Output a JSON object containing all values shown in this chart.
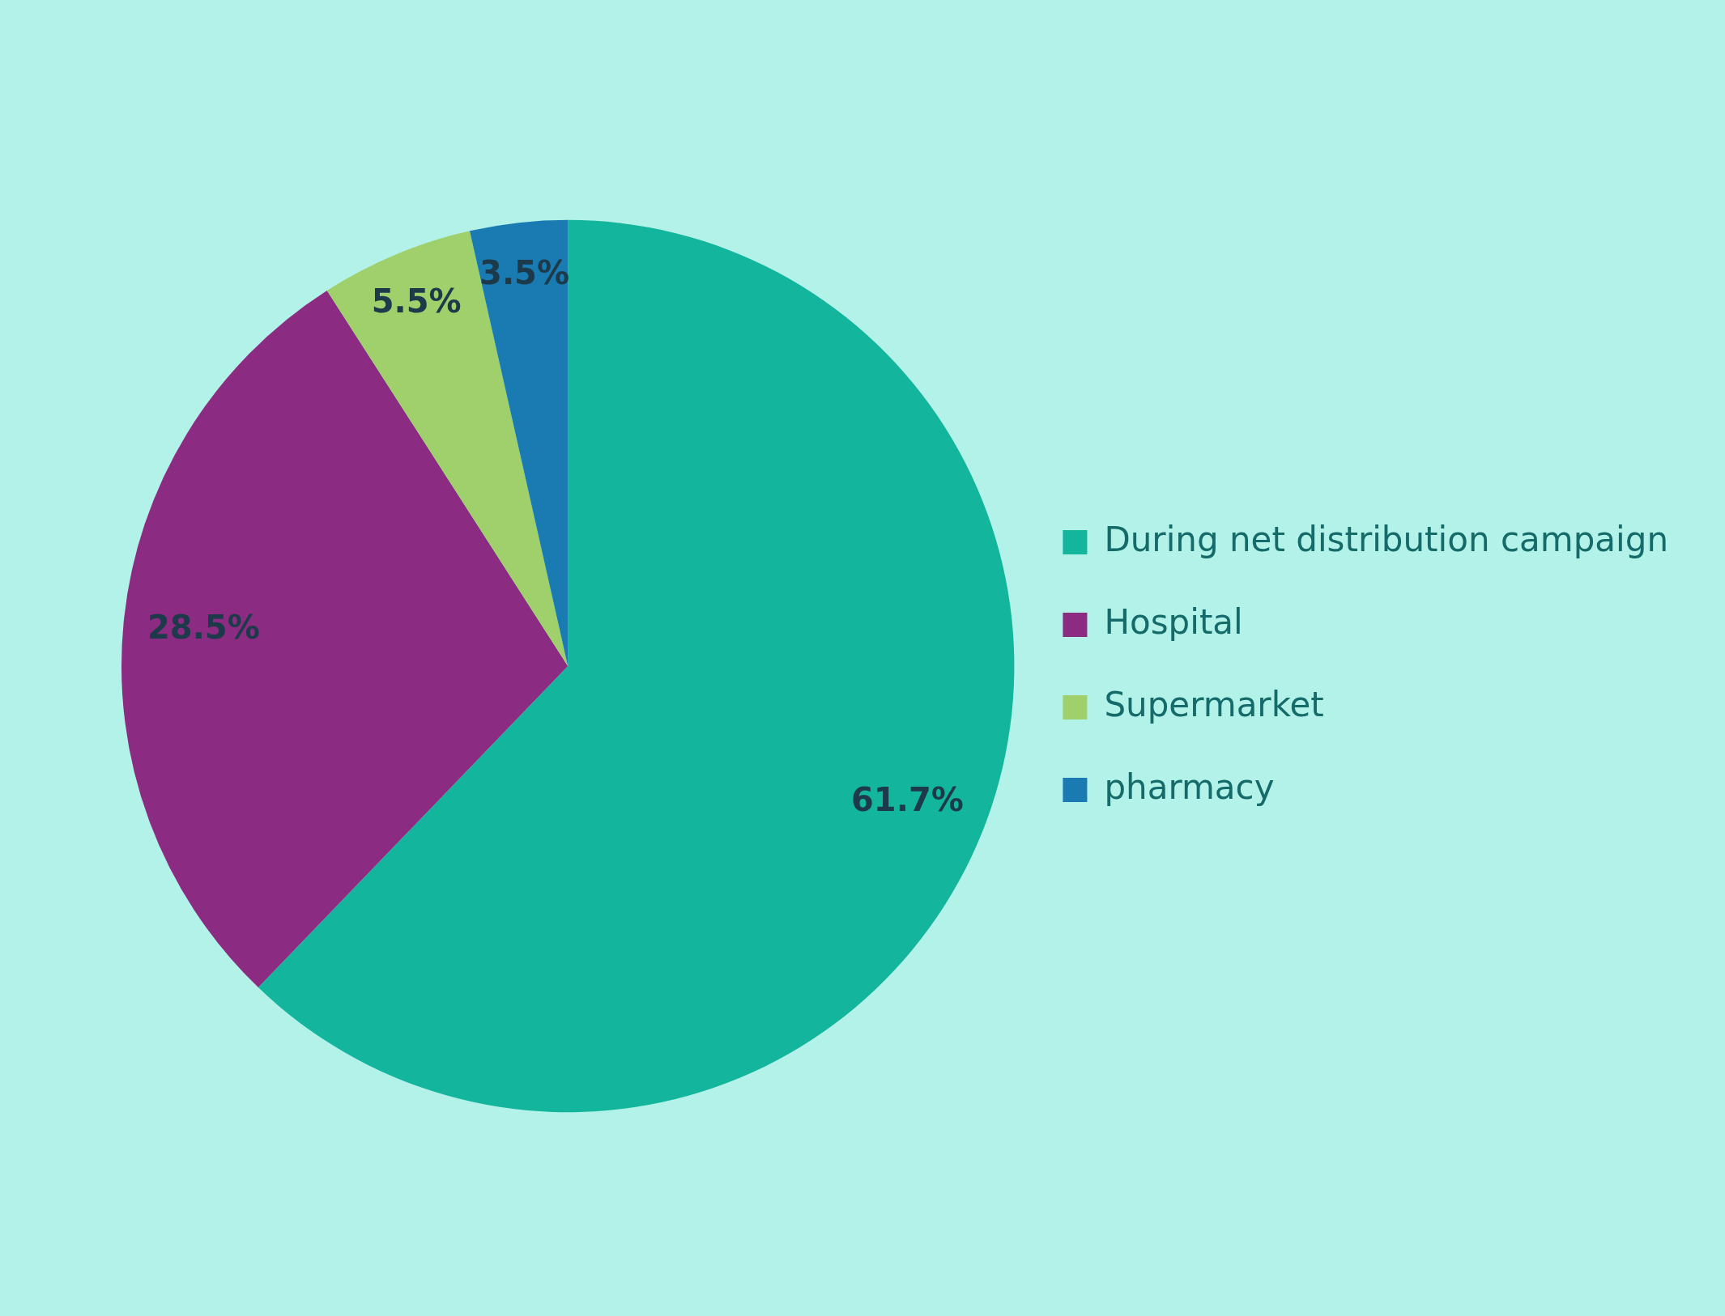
{
  "chart_data": {
    "type": "pie",
    "categories": [
      "During net distribution campaign",
      "Hospital",
      "Supermarket",
      "pharmacy"
    ],
    "values": [
      61.7,
      28.5,
      5.5,
      3.5
    ],
    "value_labels": [
      "61.7%",
      "28.5%",
      "5.5%",
      "3.5%"
    ],
    "colors": [
      "#13b59c",
      "#8c2b82",
      "#9fd06c",
      "#1a7ab2"
    ],
    "legend": "right"
  }
}
